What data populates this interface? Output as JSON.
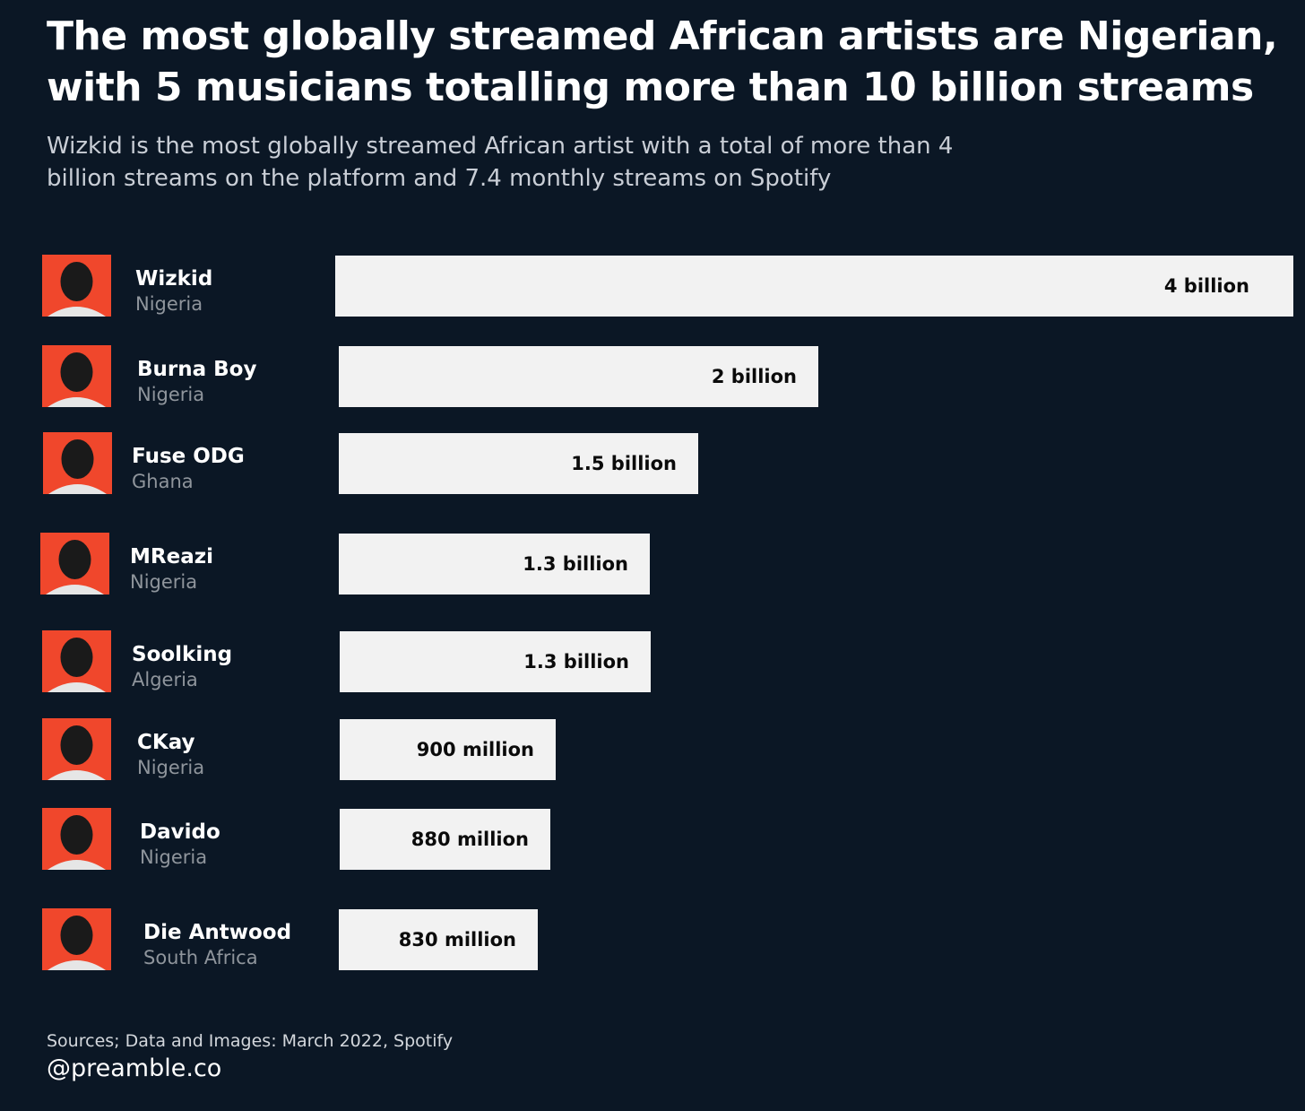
{
  "title": "The most globally streamed African artists are Nigerian, with 5 musicians totalling more than 10 billion streams",
  "subtitle": "Wizkid is the most globally streamed African artist with a total of more than 4 billion streams on the platform and 7.4 monthly streams on Spotify",
  "source": "Sources; Data and Images: March 2022, Spotify",
  "handle": "@preamble.co",
  "colors": {
    "background": "#0b1725",
    "bar": "#f2f2f2",
    "photo_background": "#f0472c"
  },
  "chart_data": {
    "type": "bar",
    "orientation": "horizontal",
    "title": "The most globally streamed African artists are Nigerian, with 5 musicians totalling more than 10 billion streams",
    "unit": "streams",
    "xlim": [
      0,
      4000000000
    ],
    "grid": false,
    "categories": [
      "Wizkid",
      "Burna Boy",
      "Fuse ODG",
      "MReazi",
      "Soolking",
      "CKay",
      "Davido",
      "Die Antwood"
    ],
    "countries": [
      "Nigeria",
      "Nigeria",
      "Ghana",
      "Nigeria",
      "Algeria",
      "Nigeria",
      "Nigeria",
      "South Africa"
    ],
    "values": [
      4000000000,
      2000000000,
      1500000000,
      1300000000,
      1300000000,
      900000000,
      880000000,
      830000000
    ],
    "labels": [
      "4 billion",
      "2 billion",
      "1.5 billion",
      "1.3 billion",
      "1.3 billion",
      "900 million",
      "880 million",
      "830 million"
    ]
  }
}
